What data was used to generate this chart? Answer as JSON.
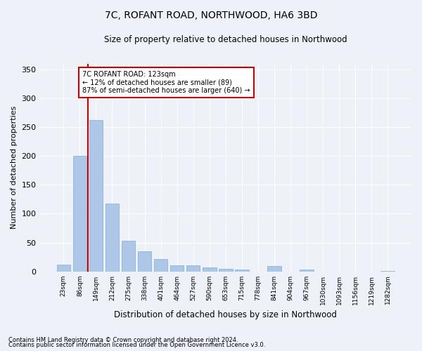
{
  "title": "7C, ROFANT ROAD, NORTHWOOD, HA6 3BD",
  "subtitle": "Size of property relative to detached houses in Northwood",
  "xlabel": "Distribution of detached houses by size in Northwood",
  "ylabel": "Number of detached properties",
  "categories": [
    "23sqm",
    "86sqm",
    "149sqm",
    "212sqm",
    "275sqm",
    "338sqm",
    "401sqm",
    "464sqm",
    "527sqm",
    "590sqm",
    "653sqm",
    "715sqm",
    "778sqm",
    "841sqm",
    "904sqm",
    "967sqm",
    "1030sqm",
    "1093sqm",
    "1156sqm",
    "1219sqm",
    "1282sqm"
  ],
  "values": [
    12,
    200,
    262,
    117,
    53,
    35,
    21,
    10,
    10,
    7,
    5,
    3,
    0,
    9,
    0,
    3,
    0,
    0,
    0,
    0,
    1
  ],
  "bar_color": "#aec6e8",
  "bar_edge_color": "#7aafd4",
  "vline_x": 1.5,
  "vline_color": "#cc0000",
  "annotation_title": "7C ROFANT ROAD: 123sqm",
  "annotation_line1": "← 12% of detached houses are smaller (89)",
  "annotation_line2": "87% of semi-detached houses are larger (640) →",
  "annotation_box_color": "#ffffff",
  "annotation_box_edge_color": "#cc0000",
  "ylim": [
    0,
    360
  ],
  "yticks": [
    0,
    50,
    100,
    150,
    200,
    250,
    300,
    350
  ],
  "footnote1": "Contains HM Land Registry data © Crown copyright and database right 2024.",
  "footnote2": "Contains public sector information licensed under the Open Government Licence v3.0.",
  "bg_color": "#eef2f8",
  "plot_bg_color": "#eef2f8"
}
